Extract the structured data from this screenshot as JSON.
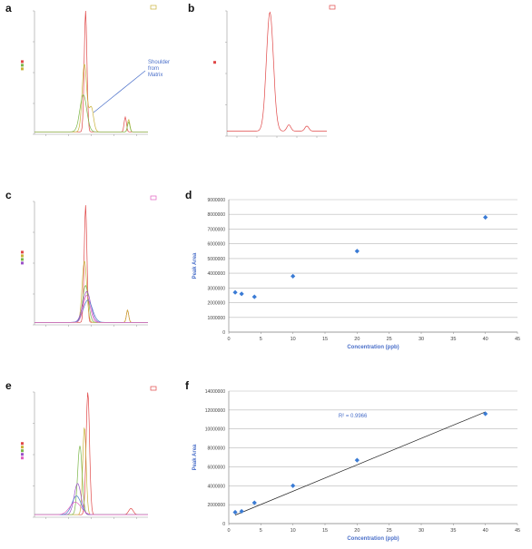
{
  "panels": {
    "a": {
      "label": "a",
      "annotation": "Shoulder\nfrom\nMatrix"
    },
    "b": {
      "label": "b"
    },
    "c": {
      "label": "c"
    },
    "d": {
      "label": "d"
    },
    "e": {
      "label": "e"
    },
    "f": {
      "label": "f"
    }
  },
  "colors": {
    "red": "#e04848",
    "yellow": "#c9b23a",
    "green": "#7ab648",
    "purple": "#9a4fc9",
    "blue": "#4a7ac9",
    "pink": "#e060c0",
    "gray_axis": "#888888",
    "marker": "#3a7bd5",
    "annotation": "#4a6fc9"
  },
  "chart_data": [
    {
      "panel": "d",
      "type": "scatter",
      "xlabel": "Concentration (ppb)",
      "ylabel": "Peak Area",
      "xlim": [
        0,
        45
      ],
      "ylim": [
        0,
        9000000
      ],
      "xticks": [
        0,
        5,
        10,
        15,
        20,
        25,
        30,
        35,
        40,
        45
      ],
      "yticks": [
        0,
        1000000,
        2000000,
        3000000,
        4000000,
        5000000,
        6000000,
        7000000,
        8000000,
        9000000
      ],
      "ytick_labels": [
        "0",
        "1000000",
        "2000000",
        "3000000",
        "4000000",
        "5000000",
        "6000000",
        "7000000",
        "8000000",
        "9000000"
      ],
      "grid": true,
      "x": [
        1,
        2,
        4,
        10,
        20,
        40
      ],
      "y": [
        2700000,
        2600000,
        2400000,
        3800000,
        5500000,
        7800000
      ]
    },
    {
      "panel": "f",
      "type": "scatter",
      "xlabel": "Concentration (ppb)",
      "ylabel": "Peak Area",
      "xlim": [
        0,
        45
      ],
      "ylim": [
        0,
        14000000
      ],
      "xticks": [
        0,
        5,
        10,
        15,
        20,
        25,
        30,
        35,
        40,
        45
      ],
      "yticks": [
        0,
        2000000,
        4000000,
        6000000,
        8000000,
        10000000,
        12000000,
        14000000
      ],
      "ytick_labels": [
        "0",
        "2000000",
        "4000000",
        "6000000",
        "8000000",
        "10000000",
        "12000000",
        "14000000"
      ],
      "grid": true,
      "x": [
        1,
        2,
        4,
        10,
        20,
        40
      ],
      "y": [
        1200000,
        1300000,
        2200000,
        4000000,
        6700000,
        11600000
      ],
      "trendline": {
        "x": [
          1,
          40
        ],
        "y": [
          900000,
          11800000
        ]
      },
      "annotation": "R² = 0.9966"
    }
  ]
}
